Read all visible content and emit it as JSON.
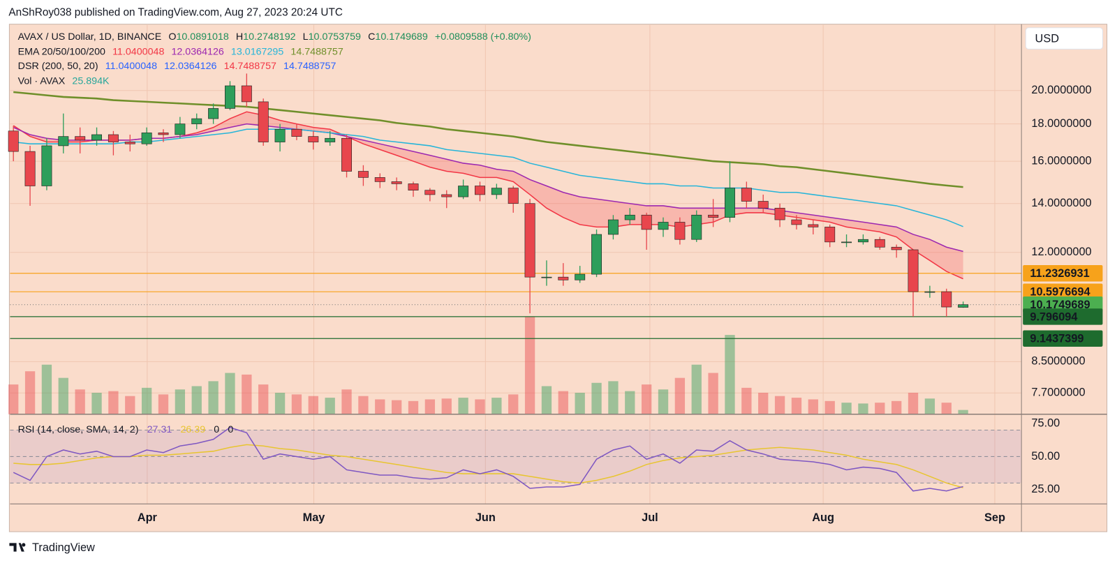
{
  "header": {
    "byline": "AnShRoy038 published on TradingView.com, Aug 27, 2023 20:24 UTC",
    "logo": "TradingView",
    "currency": "USD"
  },
  "chart_data": {
    "type": "candlestick",
    "symbol": "AVAX / US Dollar, 1D, BINANCE",
    "ohlc_labels": [
      "O",
      "H",
      "L",
      "C"
    ],
    "change": "+0.0809588 (+0.80%)",
    "ema_label": "EMA 20/50/100/200",
    "dsr_label": "DSR (200, 50, 20)",
    "dsr": [
      {
        "value": 11.0400048,
        "color": "#2962ff"
      },
      {
        "value": 12.0364126,
        "color": "#2962ff"
      },
      {
        "value": 14.7488757,
        "color": "#f23645"
      },
      {
        "value": 14.7488757,
        "color": "#2962ff"
      }
    ],
    "vol_label": "Vol · AVAX",
    "vol_value": "25.894K",
    "log_scale": true,
    "grid": true,
    "ylim": [
      7.2,
      24.6
    ],
    "yticks": [
      {
        "value": 20,
        "label": "20.0000000"
      },
      {
        "value": 18,
        "label": "18.0000000"
      },
      {
        "value": 16,
        "label": "16.0000000"
      },
      {
        "value": 14,
        "label": "14.0000000"
      },
      {
        "value": 12,
        "label": "12.0000000"
      },
      {
        "value": 8.5,
        "label": "8.5000000"
      },
      {
        "value": 7.7,
        "label": "7.7000000"
      }
    ],
    "xlim": [
      -0.2,
      60.5
    ],
    "xticks": [
      {
        "value": 8.03,
        "label": "Apr"
      },
      {
        "value": 18.03,
        "label": "May"
      },
      {
        "value": 28.33,
        "label": "Jun"
      },
      {
        "value": 38.2,
        "label": "Jul"
      },
      {
        "value": 48.6,
        "label": "Aug"
      },
      {
        "value": 58.9,
        "label": "Sep"
      }
    ],
    "candles": {
      "up_color": "#2e9e5b",
      "down_color": "#e8464d",
      "open": [
        17.6,
        16.5,
        14.8,
        16.8,
        17.3,
        17.1,
        17.4,
        17.0,
        16.9,
        17.5,
        17.4,
        18.0,
        18.3,
        18.9,
        20.3,
        19.3,
        17.0,
        17.7,
        17.3,
        17.0,
        17.2,
        15.5,
        15.2,
        15.0,
        14.9,
        14.6,
        14.4,
        14.3,
        14.8,
        14.4,
        14.7,
        14.0,
        11.1,
        11.1,
        11.0,
        11.2,
        12.7,
        13.3,
        13.5,
        12.9,
        13.2,
        12.5,
        13.5,
        13.4,
        14.7,
        14.1,
        13.8,
        13.3,
        13.1,
        13.0,
        12.4,
        12.4,
        12.5,
        12.2,
        12.1,
        10.6,
        10.6,
        10.0891018
      ],
      "high": [
        17.9,
        16.8,
        17.2,
        18.6,
        17.8,
        17.8,
        17.6,
        17.4,
        17.8,
        17.7,
        18.4,
        18.6,
        19.2,
        20.6,
        21.1,
        19.5,
        18.0,
        18.0,
        17.6,
        17.6,
        17.4,
        15.8,
        15.4,
        15.2,
        15.0,
        14.7,
        14.6,
        15.1,
        15.0,
        14.9,
        14.8,
        14.2,
        11.7,
        11.6,
        11.5,
        12.9,
        13.5,
        13.8,
        13.6,
        13.4,
        13.4,
        13.7,
        14.2,
        16.0,
        15.0,
        14.4,
        14.0,
        13.5,
        13.3,
        13.1,
        12.7,
        12.7,
        12.6,
        12.3,
        12.1,
        10.8,
        10.7,
        10.2748192
      ],
      "low": [
        16.0,
        13.9,
        14.6,
        16.4,
        16.4,
        16.8,
        16.3,
        16.5,
        16.8,
        17.0,
        17.2,
        17.7,
        18.0,
        18.8,
        19.0,
        16.8,
        16.5,
        17.1,
        16.6,
        16.8,
        15.2,
        14.8,
        14.7,
        14.6,
        14.3,
        14.1,
        13.8,
        14.2,
        14.1,
        14.2,
        13.6,
        9.9,
        10.8,
        10.8,
        10.9,
        11.1,
        12.5,
        13.1,
        12.1,
        12.6,
        12.3,
        12.4,
        13.0,
        13.2,
        13.8,
        13.6,
        13.0,
        12.9,
        12.7,
        12.2,
        12.2,
        12.3,
        12.1,
        11.8,
        9.8,
        10.4,
        9.8,
        10.0753759
      ],
      "close": [
        16.5,
        14.8,
        16.8,
        17.3,
        17.1,
        17.4,
        17.0,
        16.9,
        17.5,
        17.4,
        18.0,
        18.3,
        18.9,
        20.3,
        19.3,
        17.0,
        17.7,
        17.3,
        17.0,
        17.2,
        15.5,
        15.2,
        15.0,
        14.9,
        14.6,
        14.4,
        14.3,
        14.8,
        14.4,
        14.7,
        14.0,
        11.1,
        11.1,
        11.0,
        11.2,
        12.7,
        13.3,
        13.5,
        12.9,
        13.2,
        12.5,
        13.5,
        13.4,
        14.7,
        14.1,
        13.8,
        13.3,
        13.1,
        13.0,
        12.4,
        12.4,
        12.5,
        12.2,
        12.1,
        10.6,
        10.6,
        10.1,
        10.1749689
      ]
    },
    "volume": {
      "up_color": "rgba(46,158,91,0.45)",
      "down_color": "rgba(232,70,77,0.45)",
      "values": [
        180,
        260,
        300,
        220,
        150,
        130,
        140,
        110,
        160,
        120,
        150,
        170,
        200,
        250,
        240,
        180,
        130,
        120,
        110,
        100,
        150,
        110,
        90,
        85,
        80,
        90,
        95,
        100,
        90,
        100,
        120,
        590,
        170,
        140,
        130,
        190,
        200,
        140,
        180,
        150,
        220,
        300,
        250,
        480,
        160,
        130,
        110,
        100,
        90,
        80,
        70,
        65,
        70,
        80,
        130,
        95,
        70,
        25.894
      ]
    },
    "series": [
      {
        "color": "#f23645",
        "values": [
          17.9,
          17.3,
          17.0,
          17.0,
          17.0,
          17.1,
          17.1,
          17.1,
          17.2,
          17.2,
          17.3,
          17.5,
          17.8,
          18.3,
          18.7,
          18.5,
          18.2,
          18.0,
          17.8,
          17.7,
          17.3,
          16.9,
          16.6,
          16.3,
          16.0,
          15.7,
          15.5,
          15.4,
          15.2,
          15.2,
          15.0,
          14.4,
          13.8,
          13.4,
          13.1,
          13.0,
          13.0,
          13.1,
          13.1,
          13.1,
          13.0,
          13.1,
          13.2,
          13.5,
          13.6,
          13.6,
          13.5,
          13.4,
          13.3,
          13.2,
          13.0,
          12.9,
          12.8,
          12.6,
          12.1,
          11.7,
          11.3,
          11.0400048
        ]
      },
      {
        "color": "#9c27b0",
        "values": [
          17.8,
          17.4,
          17.2,
          17.1,
          17.1,
          17.1,
          17.1,
          17.1,
          17.2,
          17.2,
          17.3,
          17.4,
          17.6,
          17.8,
          18.0,
          17.9,
          17.8,
          17.7,
          17.6,
          17.5,
          17.3,
          17.1,
          16.9,
          16.7,
          16.5,
          16.3,
          16.1,
          15.9,
          15.8,
          15.6,
          15.5,
          15.1,
          14.8,
          14.5,
          14.3,
          14.2,
          14.1,
          14.0,
          13.9,
          13.9,
          13.8,
          13.8,
          13.8,
          13.8,
          13.8,
          13.8,
          13.7,
          13.6,
          13.5,
          13.4,
          13.3,
          13.2,
          13.1,
          13.0,
          12.7,
          12.5,
          12.2,
          12.0364126
        ]
      },
      {
        "color": "#26b5d9",
        "values": [
          17.0,
          16.9,
          16.9,
          16.9,
          16.9,
          16.9,
          16.9,
          17.0,
          17.0,
          17.1,
          17.2,
          17.3,
          17.4,
          17.5,
          17.7,
          17.7,
          17.7,
          17.7,
          17.6,
          17.5,
          17.4,
          17.3,
          17.1,
          17.0,
          16.9,
          16.8,
          16.6,
          16.5,
          16.4,
          16.3,
          16.2,
          15.9,
          15.7,
          15.5,
          15.3,
          15.2,
          15.1,
          15.0,
          14.9,
          14.9,
          14.8,
          14.8,
          14.7,
          14.7,
          14.7,
          14.6,
          14.5,
          14.5,
          14.4,
          14.3,
          14.2,
          14.1,
          14.0,
          13.9,
          13.7,
          13.5,
          13.3,
          13.0167295
        ]
      },
      {
        "color": "#6f8f2a",
        "values": [
          19.9,
          19.8,
          19.7,
          19.6,
          19.55,
          19.5,
          19.4,
          19.35,
          19.3,
          19.25,
          19.2,
          19.15,
          19.1,
          19.05,
          19.0,
          18.9,
          18.8,
          18.7,
          18.6,
          18.5,
          18.4,
          18.3,
          18.2,
          18.05,
          17.95,
          17.85,
          17.7,
          17.6,
          17.5,
          17.4,
          17.3,
          17.15,
          17.0,
          16.9,
          16.8,
          16.7,
          16.6,
          16.5,
          16.4,
          16.3,
          16.2,
          16.1,
          16.0,
          15.95,
          15.9,
          15.85,
          15.75,
          15.7,
          15.6,
          15.5,
          15.4,
          15.3,
          15.2,
          15.1,
          15.0,
          14.9,
          14.82,
          14.7488757
        ]
      }
    ],
    "fill": {
      "series": [
        0,
        1
      ],
      "color": "rgba(242,54,69,0.22)"
    },
    "current_color": "#4caf50",
    "hlines": [
      {
        "value": 11.2326931,
        "color": "#f7a21b",
        "text_color": "#131722"
      },
      {
        "value": 10.5976694,
        "color": "#f7a21b",
        "text_color": "#131722"
      },
      {
        "value": 9.796094,
        "color": "#1e6b2e",
        "text_color": "#ffffff"
      },
      {
        "value": 9.1437399,
        "color": "#1e6b2e",
        "text_color": "#ffffff"
      }
    ],
    "rsi": {
      "label": "RSI (14, close, SMA, 14, 2)",
      "color": "#7e57c2",
      "values": [
        38,
        32,
        50,
        55,
        52,
        54,
        50,
        50,
        55,
        53,
        58,
        60,
        63,
        72,
        68,
        48,
        52,
        50,
        48,
        50,
        40,
        38,
        36,
        36,
        34,
        33,
        34,
        40,
        37,
        40,
        35,
        26,
        27,
        27,
        29,
        48,
        55,
        58,
        48,
        52,
        45,
        55,
        54,
        62,
        55,
        52,
        48,
        47,
        46,
        44,
        40,
        42,
        41,
        38,
        24,
        26,
        24,
        27.31
      ],
      "sma": {
        "color": "#e8c530",
        "values": [
          45,
          44,
          44,
          45,
          47,
          49,
          50,
          50,
          51,
          51,
          52,
          53,
          54,
          57,
          59,
          58,
          56,
          55,
          53,
          51,
          50,
          48,
          46,
          44,
          42,
          40,
          38,
          37,
          37,
          37,
          37,
          35,
          33,
          31,
          30,
          32,
          35,
          39,
          44,
          47,
          49,
          50,
          51,
          53,
          55,
          56,
          57,
          56,
          55,
          53,
          51,
          48,
          46,
          44,
          40,
          35,
          30,
          26.39
        ]
      },
      "extra": [
        "0",
        "0"
      ],
      "ylim": [
        14.2,
        82
      ],
      "yticks": [
        {
          "value": 75,
          "label": "75.00"
        },
        {
          "value": 50,
          "label": "50.00"
        },
        {
          "value": 25,
          "label": "25.00"
        }
      ],
      "bands": [
        30,
        50,
        70
      ]
    }
  }
}
